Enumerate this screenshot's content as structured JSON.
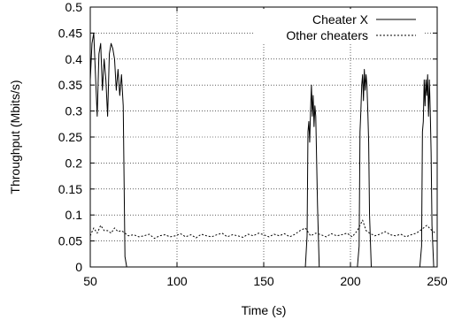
{
  "chart_data": {
    "type": "line",
    "xlabel": "Time (s)",
    "ylabel": "Throughput (Mbits/s)",
    "xlim": [
      50,
      250
    ],
    "ylim": [
      0,
      0.5
    ],
    "x_ticks": [
      50,
      100,
      150,
      200,
      250
    ],
    "x_tick_labels": [
      "50",
      "100",
      "150",
      "200",
      "250"
    ],
    "y_ticks": [
      0,
      0.05,
      0.1,
      0.15,
      0.2,
      0.25,
      0.3,
      0.35,
      0.4,
      0.45,
      0.5
    ],
    "y_tick_labels": [
      "0",
      "0.05",
      "0.1",
      "0.15",
      "0.2",
      "0.25",
      "0.3",
      "0.35",
      "0.4",
      "0.45",
      "0.5"
    ],
    "grid": true,
    "legend_position": "top-right",
    "series": [
      {
        "name": "Cheater X",
        "style": "solid",
        "color": "#000000",
        "x": [
          50,
          51,
          52,
          53,
          54,
          55,
          56,
          57,
          58,
          59,
          60,
          61,
          62,
          63,
          64,
          65,
          66,
          67,
          68,
          69,
          70,
          71,
          100,
          150,
          174,
          175,
          175.5,
          176,
          176.5,
          177,
          177.5,
          178,
          178.5,
          179,
          179.5,
          180,
          181,
          182,
          200,
          204,
          205,
          205.5,
          206,
          206.5,
          207,
          207.5,
          208,
          208.5,
          209,
          209.5,
          210,
          210.5,
          211,
          212,
          220,
          240,
          241,
          241.5,
          242,
          242.5,
          243,
          243.5,
          244,
          244.5,
          245,
          245.5,
          246,
          246.5,
          247,
          248
        ],
        "y": [
          0.36,
          0.43,
          0.45,
          0.37,
          0.29,
          0.41,
          0.43,
          0.34,
          0.4,
          0.36,
          0.29,
          0.41,
          0.43,
          0.42,
          0.4,
          0.34,
          0.38,
          0.33,
          0.37,
          0.31,
          0.02,
          0.0,
          0.0,
          0.0,
          0.0,
          0.06,
          0.26,
          0.28,
          0.24,
          0.3,
          0.35,
          0.29,
          0.33,
          0.27,
          0.31,
          0.29,
          0.12,
          0.0,
          0.0,
          0.0,
          0.04,
          0.26,
          0.3,
          0.35,
          0.37,
          0.32,
          0.38,
          0.34,
          0.37,
          0.35,
          0.3,
          0.24,
          0.1,
          0.0,
          0.0,
          0.0,
          0.04,
          0.26,
          0.28,
          0.36,
          0.31,
          0.36,
          0.33,
          0.37,
          0.29,
          0.36,
          0.3,
          0.22,
          0.08,
          0.0
        ]
      },
      {
        "name": "Other cheaters",
        "style": "dashed",
        "color": "#000000",
        "x": [
          50,
          52,
          54,
          56,
          58,
          60,
          62,
          64,
          66,
          68,
          70,
          72,
          75,
          78,
          81,
          84,
          87,
          90,
          93,
          96,
          99,
          102,
          105,
          108,
          111,
          114,
          117,
          120,
          123,
          126,
          129,
          132,
          135,
          138,
          141,
          144,
          147,
          150,
          153,
          156,
          159,
          162,
          165,
          168,
          171,
          174,
          177,
          180,
          183,
          186,
          189,
          192,
          195,
          198,
          201,
          204,
          207,
          209,
          211,
          214,
          217,
          220,
          223,
          226,
          229,
          232,
          235,
          238,
          241,
          244,
          247,
          249
        ],
        "y": [
          0.06,
          0.075,
          0.065,
          0.08,
          0.07,
          0.07,
          0.065,
          0.075,
          0.068,
          0.07,
          0.065,
          0.06,
          0.062,
          0.058,
          0.06,
          0.063,
          0.055,
          0.06,
          0.062,
          0.058,
          0.06,
          0.064,
          0.058,
          0.062,
          0.056,
          0.063,
          0.06,
          0.058,
          0.062,
          0.065,
          0.058,
          0.062,
          0.06,
          0.057,
          0.063,
          0.06,
          0.065,
          0.062,
          0.058,
          0.063,
          0.06,
          0.064,
          0.058,
          0.063,
          0.07,
          0.075,
          0.06,
          0.065,
          0.062,
          0.058,
          0.064,
          0.06,
          0.062,
          0.065,
          0.058,
          0.07,
          0.09,
          0.07,
          0.065,
          0.06,
          0.063,
          0.068,
          0.062,
          0.06,
          0.063,
          0.058,
          0.062,
          0.065,
          0.072,
          0.08,
          0.07,
          0.065
        ]
      }
    ]
  }
}
